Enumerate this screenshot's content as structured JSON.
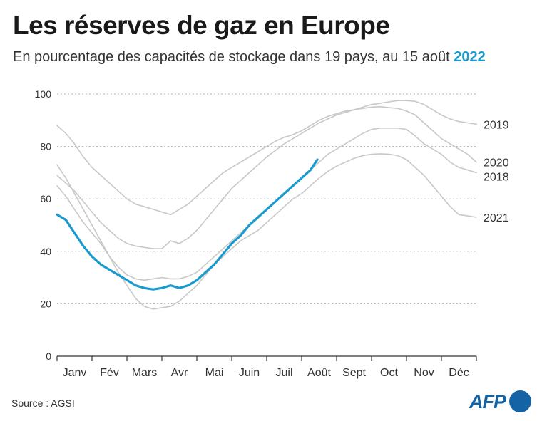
{
  "header": {
    "title": "Les réserves de gaz en Europe",
    "subtitle_main": "En pourcentage des capacités de stockage dans 19 pays, au 15 août ",
    "subtitle_year": "2022"
  },
  "footer": {
    "source": "Source : AGSI",
    "logo_text": "AFP"
  },
  "colors": {
    "highlight": "#1a9bd0",
    "background_series": "#c8c8c8",
    "grid": "#b0b0b0",
    "logo": "#1464a5"
  },
  "chart_data": {
    "type": "line",
    "title": "Les réserves de gaz en Europe",
    "subtitle": "En pourcentage des capacités de stockage dans 19 pays, au 15 août 2022",
    "xlabel": "",
    "ylabel": "",
    "ylim": [
      0,
      100
    ],
    "yticks": [
      "0",
      "20",
      "40",
      "60",
      "80",
      "100"
    ],
    "months": [
      "Janv",
      "Fév",
      "Mars",
      "Avr",
      "Mai",
      "Juin",
      "Juil",
      "Août",
      "Sept",
      "Oct",
      "Nov",
      "Déc"
    ],
    "grid": true,
    "series": [
      {
        "name": "2019",
        "highlight": false,
        "months": [
          0.0,
          0.25,
          0.5,
          0.75,
          1.0,
          1.25,
          1.5,
          1.75,
          2.0,
          2.25,
          2.5,
          2.75,
          3.0,
          3.25,
          3.5,
          3.75,
          4.0,
          4.25,
          4.5,
          4.75,
          5.0,
          5.25,
          5.5,
          5.75,
          6.0,
          6.25,
          6.5,
          6.75,
          7.0,
          7.25,
          7.5,
          7.75,
          8.0,
          8.25,
          8.5,
          8.75,
          9.0,
          9.25,
          9.5,
          9.75,
          10.0,
          10.25,
          10.5,
          10.75,
          11.0,
          11.25,
          11.5,
          11.75,
          12.0
        ],
        "values": [
          69,
          66,
          63,
          59,
          55,
          51,
          48,
          45,
          43,
          42,
          41.5,
          41,
          41,
          44,
          43,
          45,
          48,
          52,
          56,
          60,
          64,
          67,
          70,
          73,
          76,
          78.5,
          81,
          83,
          85,
          87,
          89,
          90.5,
          92,
          93,
          94,
          95,
          96,
          96.5,
          97,
          97.5,
          97.5,
          97.2,
          96,
          94,
          92,
          90.5,
          89.5,
          89,
          88.5
        ]
      },
      {
        "name": "2020",
        "highlight": false,
        "months": [
          0.0,
          0.25,
          0.5,
          0.75,
          1.0,
          1.25,
          1.5,
          1.75,
          2.0,
          2.25,
          2.5,
          2.75,
          3.0,
          3.25,
          3.5,
          3.75,
          4.0,
          4.25,
          4.5,
          4.75,
          5.0,
          5.25,
          5.5,
          5.75,
          6.0,
          6.25,
          6.5,
          6.75,
          7.0,
          7.25,
          7.5,
          7.75,
          8.0,
          8.25,
          8.5,
          8.75,
          9.0,
          9.25,
          9.5,
          9.75,
          10.0,
          10.25,
          10.5,
          10.75,
          11.0,
          11.25,
          11.5,
          11.75,
          12.0
        ],
        "values": [
          88,
          85,
          81,
          76,
          72,
          69,
          66,
          63,
          60,
          58,
          57,
          56,
          55,
          54,
          56,
          58,
          61,
          64,
          67,
          70,
          72,
          74,
          76,
          78,
          80,
          82,
          83.5,
          84.5,
          86,
          88,
          90,
          91.5,
          92.5,
          93.5,
          94,
          94.5,
          95,
          95.2,
          94.8,
          94.5,
          93.5,
          92,
          89,
          86,
          83,
          81,
          79,
          77,
          74
        ]
      },
      {
        "name": "2018",
        "highlight": false,
        "months": [
          0.0,
          0.25,
          0.5,
          0.75,
          1.0,
          1.25,
          1.5,
          1.75,
          2.0,
          2.25,
          2.5,
          2.75,
          3.0,
          3.25,
          3.5,
          3.75,
          4.0,
          4.25,
          4.5,
          4.75,
          5.0,
          5.25,
          5.5,
          5.75,
          6.0,
          6.25,
          6.5,
          6.75,
          7.0,
          7.25,
          7.5,
          7.75,
          8.0,
          8.25,
          8.5,
          8.75,
          9.0,
          9.25,
          9.5,
          9.75,
          10.0,
          10.25,
          10.5,
          10.75,
          11.0,
          11.25,
          11.5,
          11.75,
          12.0
        ],
        "values": [
          65,
          61,
          56,
          51,
          47,
          43,
          38,
          34,
          31,
          29.5,
          29,
          29.5,
          30,
          29.5,
          29.5,
          30.5,
          32,
          35,
          38,
          41,
          44,
          47,
          50,
          53,
          56,
          59,
          62,
          65,
          68,
          71,
          74,
          77,
          79,
          81,
          83,
          85,
          86.5,
          87,
          87,
          87,
          86.5,
          84,
          81,
          79,
          77,
          74,
          72,
          71,
          70
        ]
      },
      {
        "name": "2021",
        "highlight": false,
        "months": [
          0.0,
          0.25,
          0.5,
          0.75,
          1.0,
          1.25,
          1.5,
          1.75,
          2.0,
          2.25,
          2.5,
          2.75,
          3.0,
          3.25,
          3.5,
          3.75,
          4.0,
          4.25,
          4.5,
          4.75,
          5.0,
          5.25,
          5.5,
          5.75,
          6.0,
          6.25,
          6.5,
          6.75,
          7.0,
          7.25,
          7.5,
          7.75,
          8.0,
          8.25,
          8.5,
          8.75,
          9.0,
          9.25,
          9.5,
          9.75,
          10.0,
          10.25,
          10.5,
          10.75,
          11.0,
          11.25,
          11.5,
          11.75,
          12.0
        ],
        "values": [
          73,
          68,
          62,
          56,
          50,
          44,
          38,
          32,
          27,
          22,
          19,
          18,
          18.5,
          19,
          21,
          24,
          27,
          31,
          35,
          38,
          41,
          44,
          46,
          48,
          51,
          54,
          57,
          60,
          62,
          65,
          68,
          70.5,
          72.5,
          74,
          75.5,
          76.5,
          77,
          77.2,
          77,
          76.5,
          75,
          72,
          69,
          65,
          61,
          57,
          54,
          53.5,
          53
        ]
      },
      {
        "name": "2022",
        "highlight": true,
        "months": [
          0.0,
          0.25,
          0.5,
          0.75,
          1.0,
          1.25,
          1.5,
          1.75,
          2.0,
          2.25,
          2.5,
          2.75,
          3.0,
          3.25,
          3.5,
          3.75,
          4.0,
          4.25,
          4.5,
          4.75,
          5.0,
          5.25,
          5.5,
          5.75,
          6.0,
          6.25,
          6.5,
          6.75,
          7.0,
          7.25,
          7.45
        ],
        "values": [
          54,
          52,
          47,
          42,
          38,
          35,
          33,
          31,
          29,
          27,
          26,
          25.5,
          26,
          27,
          26,
          27,
          29,
          32,
          35,
          39,
          43,
          46,
          50,
          53,
          56,
          59,
          62,
          65,
          68,
          71,
          75
        ]
      }
    ]
  }
}
